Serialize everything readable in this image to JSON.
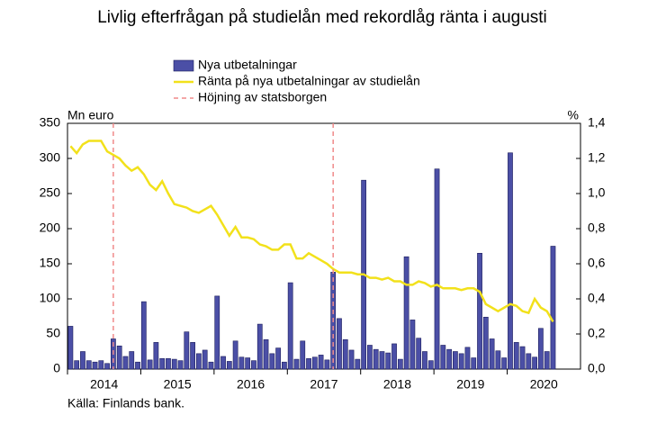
{
  "chart_data": {
    "type": "bar-line",
    "title": "Livlig efterfrågan på studielån med rekordlåg ränta i augusti",
    "y_label": "Mn euro",
    "y2_label": "%",
    "source": "Källa: Finlands bank.",
    "categories": [
      "2014",
      null,
      null,
      null,
      null,
      null,
      null,
      null,
      null,
      null,
      null,
      null,
      "2015",
      null,
      null,
      null,
      null,
      null,
      null,
      null,
      null,
      null,
      null,
      null,
      "2016",
      null,
      null,
      null,
      null,
      null,
      null,
      null,
      null,
      null,
      null,
      null,
      "2017",
      null,
      null,
      null,
      null,
      null,
      null,
      null,
      null,
      null,
      null,
      null,
      "2018",
      null,
      null,
      null,
      null,
      null,
      null,
      null,
      null,
      null,
      null,
      null,
      "2019",
      null,
      null,
      null,
      null,
      null,
      null,
      null,
      null,
      null,
      null,
      null,
      "2020",
      null,
      null,
      null,
      null,
      null,
      null,
      null
    ],
    "xlim": [
      -0.5,
      83.5
    ],
    "series": [
      {
        "name": "Nya utbetalningar",
        "type": "bar",
        "color": "#4b4fa6",
        "values": [
          61,
          12,
          25,
          12,
          10,
          12,
          8,
          43,
          33,
          18,
          25,
          10,
          96,
          13,
          38,
          15,
          15,
          14,
          12,
          53,
          38,
          22,
          27,
          10,
          104,
          18,
          11,
          40,
          17,
          16,
          12,
          64,
          42,
          22,
          30,
          10,
          123,
          14,
          40,
          15,
          17,
          20,
          13,
          138,
          72,
          42,
          27,
          14,
          269,
          34,
          28,
          25,
          23,
          36,
          14,
          160,
          70,
          44,
          25,
          12,
          285,
          34,
          28,
          25,
          22,
          31,
          16,
          165,
          74,
          43,
          26,
          16,
          308,
          38,
          32,
          22,
          17,
          58,
          25,
          175
        ]
      },
      {
        "name": "Ränta på nya utbetalningar av studielån",
        "type": "line",
        "axis": "y2",
        "color": "#f2e11b",
        "values": [
          1.27,
          1.23,
          1.28,
          1.3,
          1.3,
          1.3,
          1.24,
          1.22,
          1.2,
          1.16,
          1.13,
          1.15,
          1.11,
          1.05,
          1.02,
          1.07,
          1.0,
          0.94,
          0.93,
          0.92,
          0.9,
          0.89,
          0.91,
          0.93,
          0.88,
          0.82,
          0.76,
          0.81,
          0.75,
          0.75,
          0.74,
          0.71,
          0.7,
          0.68,
          0.68,
          0.71,
          0.71,
          0.63,
          0.63,
          0.66,
          0.64,
          0.62,
          0.6,
          0.57,
          0.55,
          0.55,
          0.55,
          0.54,
          0.54,
          0.52,
          0.52,
          0.51,
          0.52,
          0.5,
          0.5,
          0.48,
          0.48,
          0.5,
          0.49,
          0.47,
          0.48,
          0.46,
          0.46,
          0.46,
          0.45,
          0.46,
          0.46,
          0.44,
          0.37,
          0.35,
          0.33,
          0.35,
          0.37,
          0.36,
          0.33,
          0.32,
          0.4,
          0.35,
          0.33,
          0.27
        ]
      },
      {
        "name": "Höjning av statsborgen",
        "type": "vline",
        "color": "#f08a8a",
        "at": [
          7,
          43
        ]
      }
    ],
    "ylim": [
      0,
      350
    ],
    "yticks": [
      0,
      50,
      100,
      150,
      200,
      250,
      300,
      350
    ],
    "y2lim": [
      0,
      1.4
    ],
    "y2ticks": [
      {
        "value": 0,
        "label": "0,0"
      },
      {
        "value": 0.2,
        "label": "0,2"
      },
      {
        "value": 0.4,
        "label": "0,4"
      },
      {
        "value": 0.6,
        "label": "0,6"
      },
      {
        "value": 0.8,
        "label": "0,8"
      },
      {
        "value": 1.0,
        "label": "1,0"
      },
      {
        "value": 1.2,
        "label": "1,2"
      },
      {
        "value": 1.4,
        "label": "1,4"
      }
    ],
    "grid": false
  }
}
